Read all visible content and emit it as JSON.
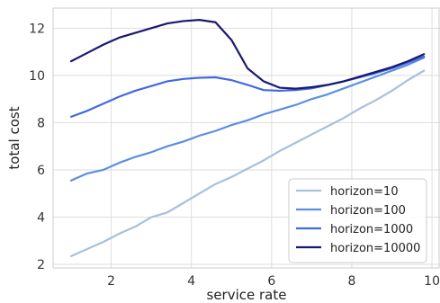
{
  "chart_data": {
    "type": "line",
    "xlabel": "service rate",
    "ylabel": "total cost",
    "xlim": [
      0.55,
      10.2
    ],
    "ylim": [
      1.85,
      12.85
    ],
    "xticks": [
      2,
      4,
      6,
      8,
      10
    ],
    "yticks": [
      2,
      4,
      6,
      8,
      10,
      12
    ],
    "grid": true,
    "legend_position": "bottom-right",
    "x": [
      1.0,
      1.4,
      1.8,
      2.2,
      2.6,
      3.0,
      3.4,
      3.8,
      4.2,
      4.6,
      5.0,
      5.4,
      5.8,
      6.2,
      6.6,
      7.0,
      7.4,
      7.8,
      8.2,
      8.6,
      9.0,
      9.4,
      9.8
    ],
    "series": [
      {
        "name": "horizon=10",
        "color": "#a8c0dc",
        "values": [
          2.35,
          2.65,
          2.95,
          3.3,
          3.6,
          4.0,
          4.2,
          4.6,
          5.0,
          5.4,
          5.7,
          6.05,
          6.4,
          6.8,
          7.15,
          7.5,
          7.85,
          8.2,
          8.6,
          8.95,
          9.35,
          9.8,
          10.2
        ]
      },
      {
        "name": "horizon=100",
        "color": "#5b8fe0",
        "values": [
          5.55,
          5.85,
          6.0,
          6.3,
          6.55,
          6.75,
          7.0,
          7.2,
          7.45,
          7.65,
          7.9,
          8.1,
          8.35,
          8.55,
          8.75,
          9.0,
          9.2,
          9.45,
          9.7,
          9.95,
          10.2,
          10.45,
          10.75
        ]
      },
      {
        "name": "horizon=1000",
        "color": "#4169e1",
        "values": [
          8.25,
          8.5,
          8.8,
          9.1,
          9.35,
          9.55,
          9.75,
          9.85,
          9.9,
          9.92,
          9.8,
          9.6,
          9.38,
          9.35,
          9.38,
          9.45,
          9.6,
          9.75,
          9.92,
          10.1,
          10.3,
          10.55,
          10.8
        ]
      },
      {
        "name": "horizon=10000",
        "color": "#191970",
        "values": [
          10.6,
          10.95,
          11.3,
          11.6,
          11.8,
          12.0,
          12.2,
          12.3,
          12.35,
          12.25,
          11.5,
          10.3,
          9.75,
          9.48,
          9.44,
          9.5,
          9.6,
          9.75,
          9.95,
          10.15,
          10.35,
          10.6,
          10.9
        ]
      }
    ]
  }
}
